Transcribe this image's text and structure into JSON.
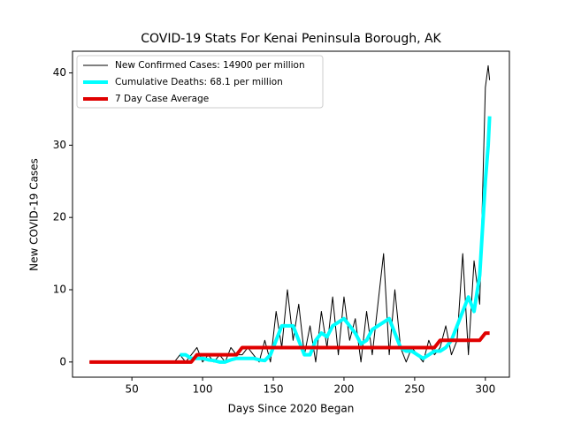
{
  "chart_data": {
    "type": "line",
    "title": "COVID-19 Stats For Kenai Peninsula Borough, AK",
    "xlabel": "Days Since 2020 Began",
    "ylabel": "New COVID-19 Cases",
    "xlim": [
      8,
      317
    ],
    "ylim": [
      -2.1,
      43
    ],
    "xticks": [
      50,
      100,
      150,
      200,
      250,
      300
    ],
    "yticks": [
      0,
      10,
      20,
      30,
      40
    ],
    "grid": false,
    "legend": "upper left",
    "x": [
      20,
      24,
      28,
      32,
      36,
      40,
      44,
      48,
      52,
      56,
      60,
      64,
      68,
      72,
      76,
      80,
      84,
      88,
      92,
      96,
      100,
      104,
      108,
      112,
      116,
      120,
      124,
      128,
      132,
      136,
      140,
      144,
      148,
      152,
      156,
      160,
      164,
      168,
      172,
      176,
      180,
      184,
      188,
      192,
      196,
      200,
      204,
      208,
      212,
      216,
      220,
      224,
      228,
      232,
      236,
      240,
      244,
      248,
      252,
      256,
      260,
      264,
      268,
      272,
      276,
      280,
      284,
      288,
      292,
      296,
      300,
      302,
      303
    ],
    "series": [
      {
        "name": "New Confirmed Cases: 14900 per million",
        "color": "#000000",
        "width": 1,
        "values": [
          0,
          0,
          0,
          0,
          0,
          0,
          0,
          0,
          0,
          0,
          0,
          0,
          0,
          0,
          0,
          0,
          1,
          0,
          1,
          2,
          0,
          1,
          0,
          1,
          0,
          2,
          1,
          1,
          2,
          1,
          0,
          3,
          0,
          7,
          2,
          10,
          3,
          8,
          1,
          5,
          0,
          7,
          2,
          9,
          1,
          9,
          3,
          6,
          0,
          7,
          1,
          8,
          15,
          1,
          10,
          2,
          0,
          2,
          1,
          0,
          3,
          1,
          2,
          5,
          1,
          3,
          15,
          1,
          14,
          8,
          38,
          41,
          39
        ]
      },
      {
        "name": "Cumulative Deaths: 68.1 per million",
        "color": "#00ffff",
        "width": 4,
        "values": [
          null,
          null,
          null,
          null,
          null,
          null,
          null,
          null,
          null,
          null,
          null,
          null,
          null,
          null,
          null,
          null,
          1,
          1,
          0.5,
          0.5,
          0.5,
          0.3,
          0.2,
          0,
          0,
          0.3,
          0.5,
          0.5,
          0.5,
          0.5,
          0.3,
          0.2,
          1,
          3,
          5,
          5,
          5,
          3,
          1,
          1,
          3,
          4,
          3.5,
          5,
          5.5,
          6,
          5,
          4,
          2.5,
          3,
          4.5,
          5,
          5.5,
          6,
          4,
          2,
          1.5,
          1.5,
          1,
          0.5,
          1,
          1.5,
          1.5,
          2,
          3,
          5,
          7,
          9,
          7,
          12,
          25,
          30,
          34
        ]
      },
      {
        "name": "7 Day Case Average",
        "color": "#e00000",
        "width": 4,
        "values": [
          0,
          0,
          0,
          0,
          0,
          0,
          0,
          0,
          0,
          0,
          0,
          0,
          0,
          0,
          0,
          0,
          0,
          0,
          0,
          1,
          1,
          1,
          1,
          1,
          1,
          1,
          1,
          2,
          2,
          2,
          2,
          2,
          2,
          2,
          2,
          2,
          2,
          2,
          2,
          2,
          2,
          2,
          2,
          2,
          2,
          2,
          2,
          2,
          2,
          2,
          2,
          2,
          2,
          2,
          2,
          2,
          2,
          2,
          2,
          2,
          2,
          2,
          3,
          3,
          3,
          3,
          3,
          3,
          3,
          3,
          4,
          4,
          4
        ]
      }
    ]
  }
}
